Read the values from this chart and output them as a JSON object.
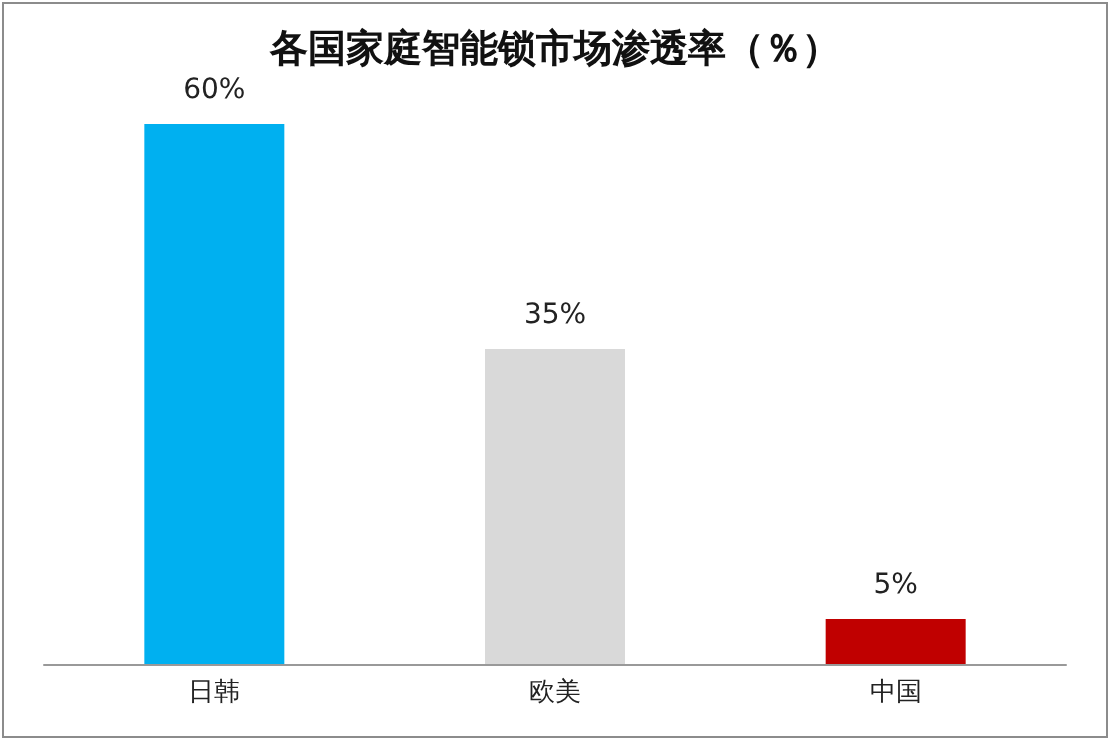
{
  "chart_data": {
    "type": "bar",
    "title": "各国家庭智能锁市场渗透率（％）",
    "categories": [
      "日韩",
      "欧美",
      "中国"
    ],
    "values": [
      60,
      35,
      5
    ],
    "colors": [
      "#00b0f0",
      "#d9d9d9",
      "#c00000"
    ],
    "value_labels": [
      "60%",
      "35%",
      "5%"
    ],
    "grid": false
  }
}
